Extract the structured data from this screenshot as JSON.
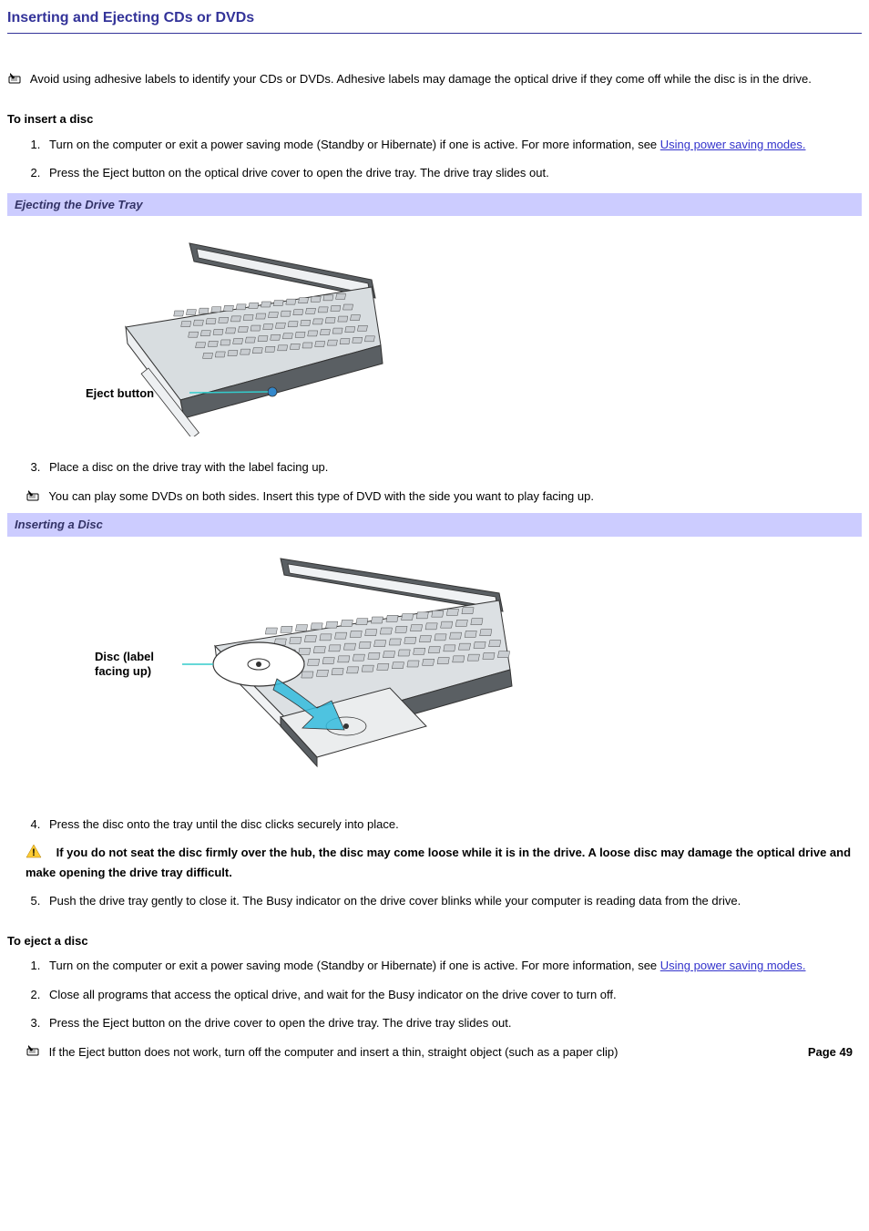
{
  "title": "Inserting and Ejecting CDs or DVDs",
  "intro_note": "Avoid using adhesive labels to identify your CDs or DVDs. Adhesive labels may damage the optical drive if they come off while the disc is in the drive.",
  "insert": {
    "heading": "To insert a disc",
    "steps": [
      {
        "pre": "Turn on the computer or exit a power saving mode (Standby or Hibernate) if one is active. For more information, see ",
        "link": "Using power saving modes.",
        "post": ""
      },
      {
        "text": "Press the Eject button on the optical drive cover to open the drive tray. The drive tray slides out."
      },
      {
        "text": "Place a disc on the drive tray with the label facing up."
      },
      {
        "text": "Press the disc onto the tray until the disc clicks securely into place."
      },
      {
        "text": "Push the drive tray gently to close it. The Busy indicator on the drive cover blinks while your computer is reading data from the drive."
      }
    ]
  },
  "figure1": {
    "title": "Ejecting the Drive Tray",
    "label": "Eject button",
    "colors": {
      "body": "#d8dde0",
      "body_light": "#eef0f2",
      "dark": "#5a5f63",
      "stroke": "#333333",
      "key_fill": "#c8ccd0",
      "indicator_line": "#33cccc",
      "indicator_dot": "#3388cc"
    }
  },
  "dvd_note": "You can play some DVDs on both sides. Insert this type of DVD with the side you want to play facing up.",
  "figure2": {
    "title": "Inserting a Disc",
    "label": "Disc (label",
    "label2": "facing up)",
    "colors": {
      "body": "#dce0e3",
      "body_light": "#f0f2f4",
      "dark": "#5a5f63",
      "stroke": "#333333",
      "key_fill": "#caced2",
      "tray": "#ebedee",
      "disc": "#ffffff",
      "arrow": "#33bbdd",
      "indicator_line": "#33cccc"
    }
  },
  "caution": "If you do not seat the disc firmly over the hub, the disc may come loose while it is in the drive. A loose disc may damage the optical drive and make opening the drive tray difficult.",
  "eject": {
    "heading": "To eject a disc",
    "steps": [
      {
        "pre": "Turn on the computer or exit a power saving mode (Standby or Hibernate) if one is active. For more information, see ",
        "link": "Using power saving modes.",
        "post": ""
      },
      {
        "text": "Close all programs that access the optical drive, and wait for the Busy indicator on the drive cover to turn off."
      },
      {
        "text": "Press the Eject button on the drive cover to open the drive tray. The drive tray slides out."
      }
    ]
  },
  "eject_note": "If the Eject button does not work, turn off the computer and insert a thin, straight object (such as a paper clip)",
  "page_number": "Page 49",
  "colors": {
    "title_color": "#333399",
    "title_border": "#333399",
    "link_color": "#3333cc",
    "figure_title_bg": "#ccccff",
    "figure_title_color": "#333366",
    "caution_triangle": "#ffcc33",
    "caution_bang": "#000000",
    "text_color": "#000000",
    "bg": "#ffffff"
  }
}
